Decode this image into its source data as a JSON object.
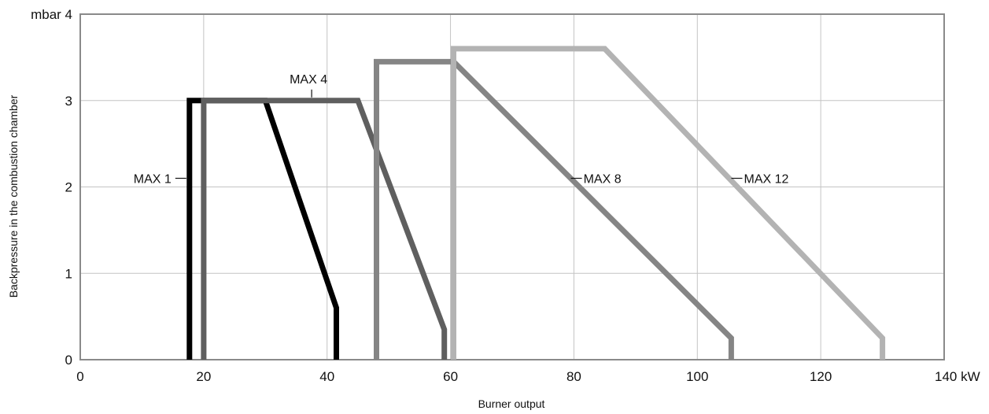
{
  "chart_data": {
    "type": "line",
    "xlabel": "Burner output",
    "ylabel": "Backpressure in the combustion chamber",
    "xlim": [
      0,
      140
    ],
    "ylim": [
      0,
      4
    ],
    "x_ticks": [
      "0",
      "20",
      "40",
      "60",
      "80",
      "100",
      "120",
      "140 kW"
    ],
    "y_ticks": [
      "0",
      "1",
      "2",
      "3",
      "mbar 4"
    ],
    "grid": true,
    "legend": "none",
    "series": [
      {
        "name": "MAX 1",
        "color": "#000000",
        "points": [
          [
            17.7,
            0
          ],
          [
            17.7,
            3.0
          ],
          [
            30.0,
            3.0
          ],
          [
            41.5,
            0.6
          ],
          [
            41.5,
            0
          ]
        ]
      },
      {
        "name": "MAX 4",
        "color": "#5f5f5f",
        "points": [
          [
            20.0,
            0
          ],
          [
            20.0,
            3.0
          ],
          [
            45.0,
            3.0
          ],
          [
            59.0,
            0.35
          ],
          [
            59.0,
            0
          ]
        ]
      },
      {
        "name": "MAX 8",
        "color": "#858585",
        "points": [
          [
            48.0,
            0
          ],
          [
            48.0,
            3.45
          ],
          [
            60.5,
            3.45
          ],
          [
            105.5,
            0.25
          ],
          [
            105.5,
            0
          ]
        ]
      },
      {
        "name": "MAX 12",
        "color": "#b3b3b3",
        "points": [
          [
            60.5,
            0
          ],
          [
            60.5,
            3.6
          ],
          [
            85.0,
            3.6
          ],
          [
            130.0,
            0.25
          ],
          [
            130.0,
            0
          ]
        ]
      }
    ],
    "annotations": [
      {
        "text": "MAX 1",
        "series": "MAX 1",
        "x": 17.7,
        "y": 2.1,
        "side": "left"
      },
      {
        "text": "MAX 4",
        "series": "MAX 4",
        "x": 37.5,
        "y": 3.0,
        "side": "top"
      },
      {
        "text": "MAX 8",
        "series": "MAX 8",
        "x": 79.0,
        "y": 2.1,
        "side": "right"
      },
      {
        "text": "MAX 12",
        "series": "MAX 12",
        "x": 105.0,
        "y": 2.1,
        "side": "right"
      }
    ]
  }
}
